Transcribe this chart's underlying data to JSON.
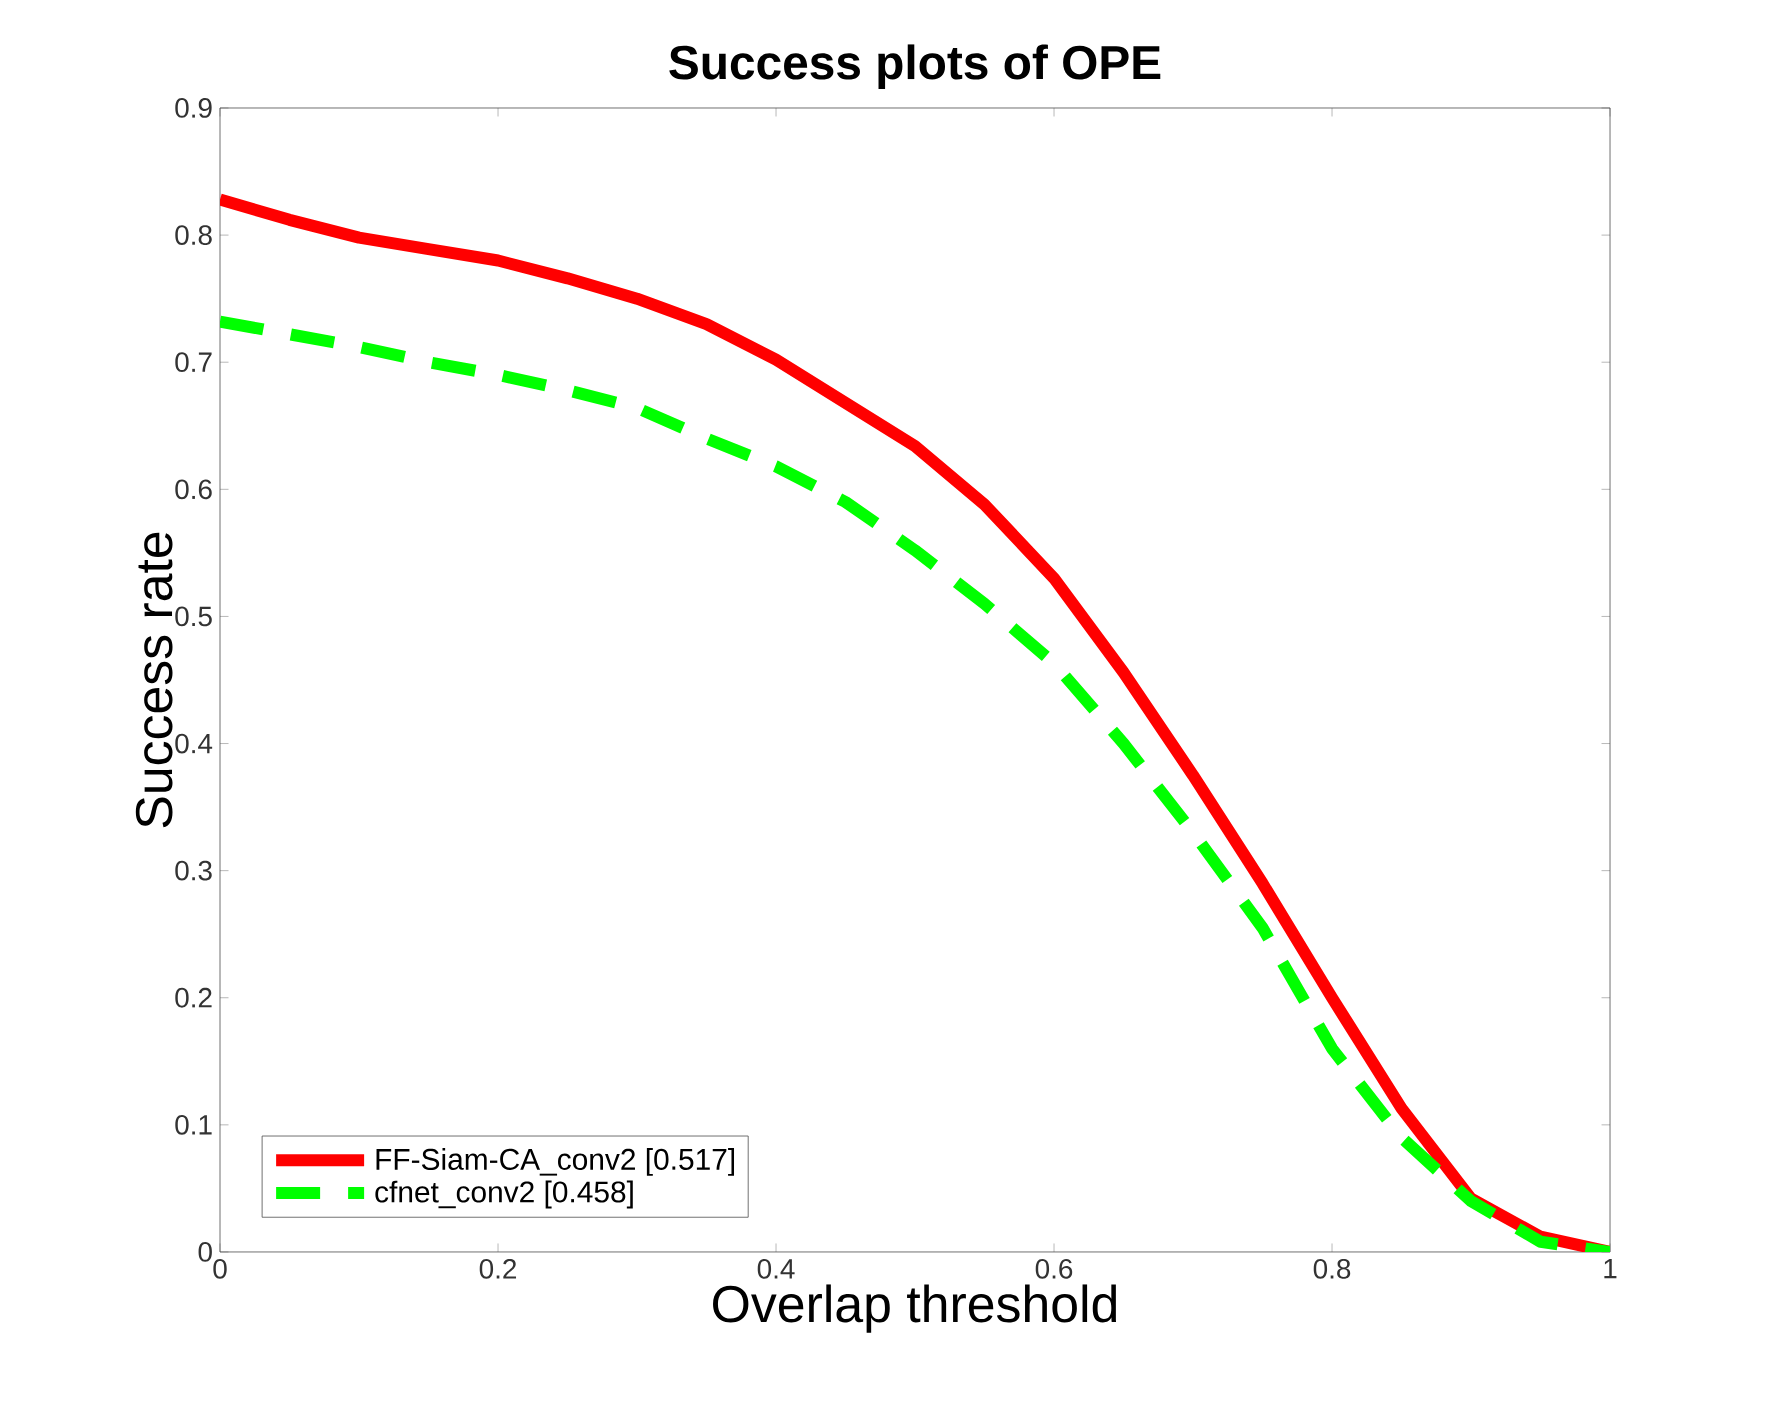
{
  "chart_data": {
    "type": "line",
    "title": "Success plots of OPE",
    "xlabel": "Overlap threshold",
    "ylabel": "Success rate",
    "x": [
      0,
      0.05,
      0.1,
      0.15,
      0.2,
      0.25,
      0.3,
      0.35,
      0.4,
      0.45,
      0.5,
      0.55,
      0.6,
      0.65,
      0.7,
      0.75,
      0.8,
      0.85,
      0.9,
      0.95,
      1
    ],
    "series": [
      {
        "name": "FF-Siam-CA_conv2 [0.517]",
        "color": "#ff0000",
        "line_style": "solid",
        "values": [
          0.828,
          0.812,
          0.798,
          0.789,
          0.78,
          0.766,
          0.75,
          0.73,
          0.702,
          0.668,
          0.634,
          0.588,
          0.53,
          0.456,
          0.375,
          0.29,
          0.2,
          0.113,
          0.042,
          0.012,
          0
        ]
      },
      {
        "name": "cfnet_conv2 [0.458]",
        "color": "#00ff00",
        "line_style": "dashed",
        "values": [
          0.732,
          0.722,
          0.712,
          0.7,
          0.69,
          0.678,
          0.664,
          0.64,
          0.618,
          0.59,
          0.552,
          0.51,
          0.463,
          0.4,
          0.33,
          0.255,
          0.16,
          0.09,
          0.04,
          0.008,
          0
        ]
      }
    ],
    "xlim": [
      0,
      1
    ],
    "ylim": [
      0,
      0.9
    ],
    "xticks": [
      0,
      0.2,
      0.4,
      0.6,
      0.8,
      1
    ],
    "yticks": [
      0,
      0.1,
      0.2,
      0.3,
      0.4,
      0.5,
      0.6,
      0.7,
      0.8,
      0.9
    ],
    "grid": false,
    "legend": "bottom left",
    "marker": "none"
  }
}
